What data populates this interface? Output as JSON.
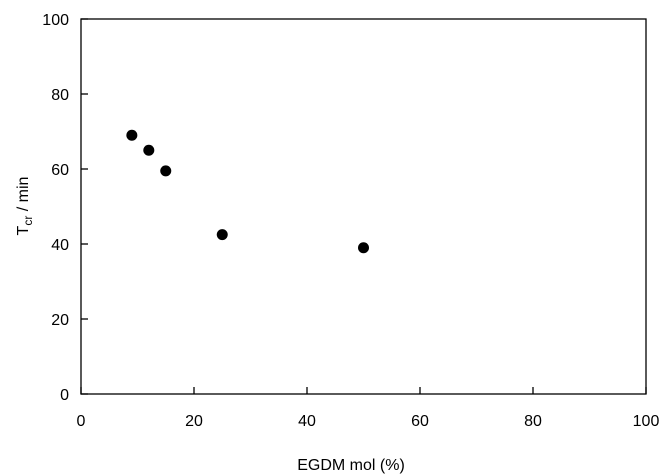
{
  "chart_data": {
    "type": "scatter",
    "title": "",
    "xlabel": "EGDM mol (%)",
    "ylabel": {
      "base": "T",
      "subscript": "cr",
      "rest": " / min"
    },
    "xlim": [
      0,
      100
    ],
    "ylim": [
      0,
      100
    ],
    "xticks": [
      "0",
      "20",
      "40",
      "60",
      "80",
      "100"
    ],
    "yticks": [
      "0",
      "20",
      "40",
      "60",
      "80",
      "100"
    ],
    "grid": false,
    "legend": "none",
    "marker_color": "#000000",
    "series": [
      {
        "x": [
          9,
          12,
          15,
          25,
          50
        ],
        "y": [
          69,
          65,
          59.5,
          42.5,
          39
        ]
      }
    ]
  }
}
